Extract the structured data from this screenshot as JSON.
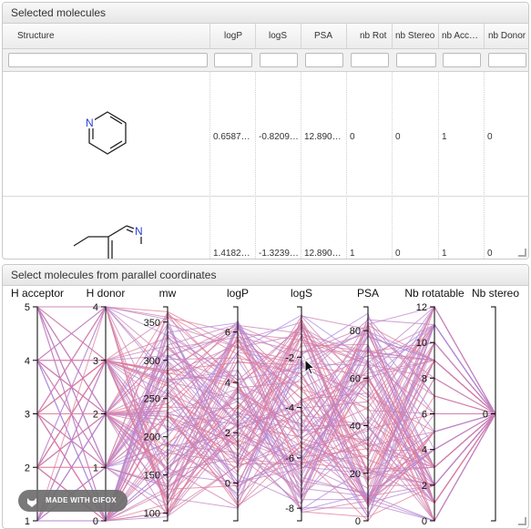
{
  "top_panel": {
    "title": "Selected molecules",
    "columns": [
      "Structure",
      "logP",
      "logS",
      "PSA",
      "nb Rot",
      "nb Stereo",
      "nb Acc…",
      "nb Donor"
    ],
    "rows": [
      {
        "molecule": "pyridine",
        "atom_label": "N",
        "logP": "0.6587…",
        "logS": "-0.8209…",
        "PSA": "12.8900…",
        "nb_rot": "0",
        "nb_stereo": "0",
        "nb_acc": "1",
        "nb_donor": "0"
      },
      {
        "molecule": "imine",
        "atom_label": "N",
        "logP": "1.4182…",
        "logS": "-1.3239…",
        "PSA": "12.8900…",
        "nb_rot": "1",
        "nb_stereo": "0",
        "nb_acc": "1",
        "nb_donor": "0"
      }
    ]
  },
  "bottom_panel": {
    "title": "Select molecules from parallel coordinates"
  },
  "chart_data": {
    "type": "parallel-coordinates",
    "axes": [
      {
        "name": "H acceptor",
        "ticks": [
          "1",
          "2",
          "3",
          "4",
          "5"
        ],
        "range": [
          1,
          5
        ]
      },
      {
        "name": "H donor",
        "ticks": [
          "0",
          "1",
          "2",
          "3",
          "4"
        ],
        "range": [
          0,
          4
        ]
      },
      {
        "name": "mw",
        "ticks": [
          "100",
          "150",
          "200",
          "250",
          "300",
          "350"
        ],
        "range": [
          90,
          370
        ]
      },
      {
        "name": "logP",
        "ticks": [
          "0",
          "2",
          "4",
          "6"
        ],
        "range": [
          -1.5,
          7
        ]
      },
      {
        "name": "logS",
        "ticks": [
          "-8",
          "-6",
          "-4",
          "-2"
        ],
        "range": [
          -8.5,
          0
        ]
      },
      {
        "name": "PSA",
        "ticks": [
          "0",
          "20",
          "40",
          "60",
          "80"
        ],
        "range": [
          0,
          90
        ]
      },
      {
        "name": "Nb rotatable",
        "ticks": [
          "0",
          "2",
          "4",
          "6",
          "8",
          "10",
          "12"
        ],
        "range": [
          0,
          12
        ]
      },
      {
        "name": "Nb stereo",
        "ticks": [
          "0"
        ],
        "range": [
          -1.5,
          1.5
        ]
      }
    ],
    "line_colors": [
      "#e8788a",
      "#a88be8"
    ],
    "line_count": 120
  },
  "watermark": {
    "label": "MADE WITH GIFOX"
  }
}
